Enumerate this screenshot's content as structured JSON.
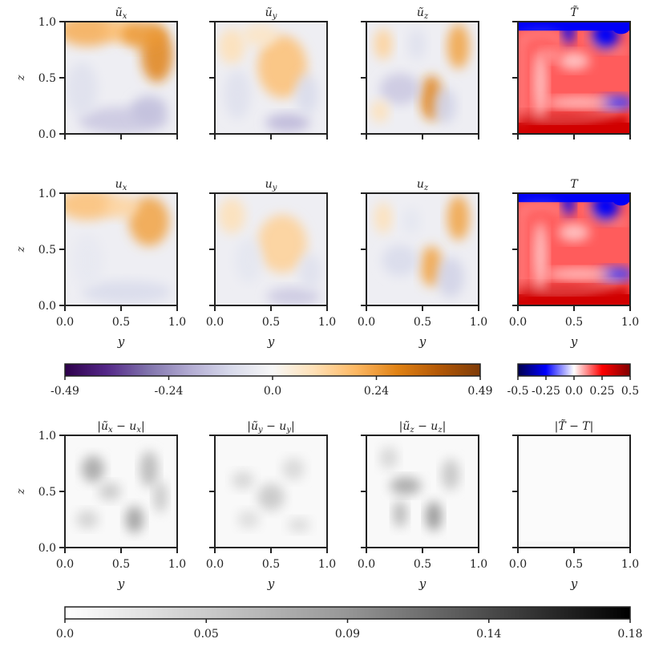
{
  "chart_data": {
    "type": "heatmap",
    "grid": {
      "rows": 3,
      "cols": 4
    },
    "panels": [
      {
        "title": "ũ_x",
        "cmap": "PuOr_r",
        "pattern": "pred_ux",
        "row": 0,
        "col": 0
      },
      {
        "title": "ũ_y",
        "cmap": "PuOr_r",
        "pattern": "pred_uy",
        "row": 0,
        "col": 1
      },
      {
        "title": "ũ_z",
        "cmap": "PuOr_r",
        "pattern": "pred_uz",
        "row": 0,
        "col": 2
      },
      {
        "title": "T̃",
        "cmap": "seismic",
        "pattern": "pred_T",
        "row": 0,
        "col": 3
      },
      {
        "title": "u_x",
        "cmap": "PuOr_r",
        "pattern": "true_ux",
        "row": 1,
        "col": 0
      },
      {
        "title": "u_y",
        "cmap": "PuOr_r",
        "pattern": "true_uy",
        "row": 1,
        "col": 1
      },
      {
        "title": "u_z",
        "cmap": "PuOr_r",
        "pattern": "true_uz",
        "row": 1,
        "col": 2
      },
      {
        "title": "T",
        "cmap": "seismic",
        "pattern": "true_T",
        "row": 1,
        "col": 3
      },
      {
        "title": "|ũ_x − u_x|",
        "cmap": "Greys",
        "pattern": "err_ux",
        "row": 2,
        "col": 0
      },
      {
        "title": "|ũ_y − u_y|",
        "cmap": "Greys",
        "pattern": "err_uy",
        "row": 2,
        "col": 1
      },
      {
        "title": "|ũ_z − u_z|",
        "cmap": "Greys",
        "pattern": "err_uz",
        "row": 2,
        "col": 2
      },
      {
        "title": "|T̃ − T|",
        "cmap": "Greys",
        "pattern": "err_T",
        "row": 2,
        "col": 3
      }
    ],
    "xlabel": "y",
    "ylabel": "z",
    "xlim": [
      0,
      1
    ],
    "ylim": [
      0,
      1
    ],
    "xticks": [
      "0.0",
      "0.5",
      "1.0"
    ],
    "yticks": [
      "0.0",
      "0.5",
      "1.0"
    ],
    "colorbars": [
      {
        "name": "velocity",
        "cmap": "PuOr_r",
        "range": [
          -0.49,
          0.49
        ],
        "ticks": [
          "-0.49",
          "-0.24",
          "0.0",
          "0.24",
          "0.49"
        ]
      },
      {
        "name": "temperature",
        "cmap": "seismic",
        "range": [
          -0.5,
          0.5
        ],
        "ticks": [
          "-0.5",
          "-0.25",
          "0.0",
          "0.25",
          "0.5"
        ]
      },
      {
        "name": "error",
        "cmap": "Greys",
        "range": [
          0.0,
          0.18
        ],
        "ticks": [
          "0.0",
          "0.05",
          "0.09",
          "0.14",
          "0.18"
        ]
      }
    ]
  }
}
